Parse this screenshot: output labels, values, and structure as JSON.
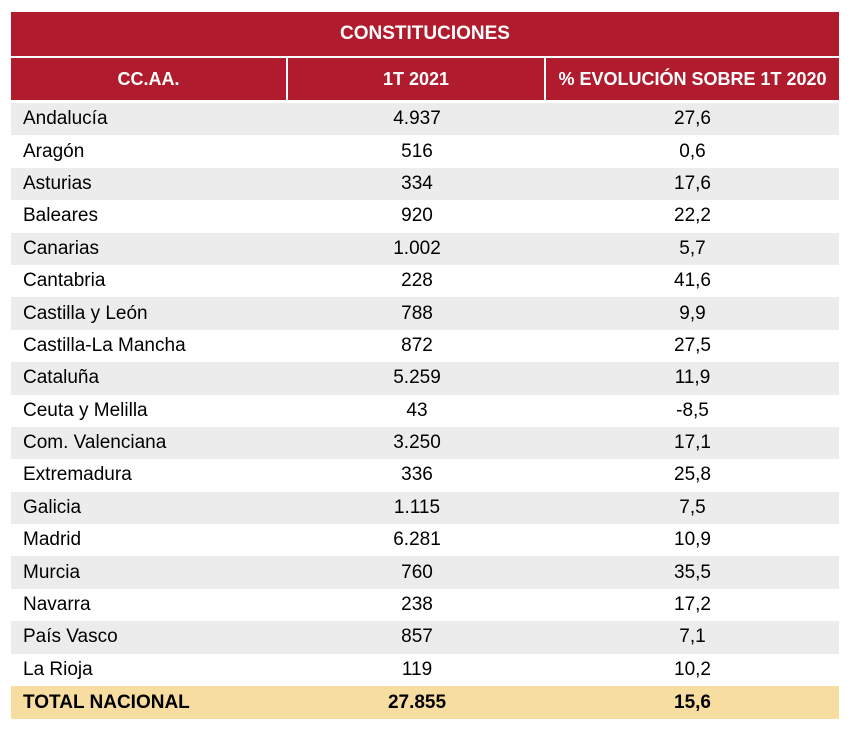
{
  "title": "CONSTITUCIONES",
  "headers": [
    "CC.AA.",
    "1T 2021",
    "% EVOLUCIÓN SOBRE 1T 2020"
  ],
  "rows": [
    {
      "name": "Andalucía",
      "value": "4.937",
      "evolution": "27,6"
    },
    {
      "name": "Aragón",
      "value": "516",
      "evolution": "0,6"
    },
    {
      "name": "Asturias",
      "value": "334",
      "evolution": "17,6"
    },
    {
      "name": "Baleares",
      "value": "920",
      "evolution": "22,2"
    },
    {
      "name": "Canarias",
      "value": "1.002",
      "evolution": "5,7"
    },
    {
      "name": "Cantabria",
      "value": "228",
      "evolution": "41,6"
    },
    {
      "name": "Castilla y León",
      "value": "788",
      "evolution": "9,9"
    },
    {
      "name": "Castilla-La Mancha",
      "value": "872",
      "evolution": "27,5"
    },
    {
      "name": "Cataluña",
      "value": "5.259",
      "evolution": "11,9"
    },
    {
      "name": "Ceuta y Melilla",
      "value": "43",
      "evolution": "-8,5"
    },
    {
      "name": "Com. Valenciana",
      "value": "3.250",
      "evolution": "17,1"
    },
    {
      "name": "Extremadura",
      "value": "336",
      "evolution": "25,8"
    },
    {
      "name": "Galicia",
      "value": "1.115",
      "evolution": "7,5"
    },
    {
      "name": "Madrid",
      "value": "6.281",
      "evolution": "10,9"
    },
    {
      "name": "Murcia",
      "value": "760",
      "evolution": "35,5"
    },
    {
      "name": "Navarra",
      "value": "238",
      "evolution": "17,2"
    },
    {
      "name": "País Vasco",
      "value": "857",
      "evolution": "7,1"
    },
    {
      "name": "La Rioja",
      "value": "119",
      "evolution": "10,2"
    }
  ],
  "total": {
    "name": "TOTAL NACIONAL",
    "value": "27.855",
    "evolution": "15,6"
  },
  "colors": {
    "header_bg": "#b01c2e",
    "header_text": "#ffffff",
    "stripe_bg": "#ececec",
    "total_bg": "#f8dda0"
  }
}
